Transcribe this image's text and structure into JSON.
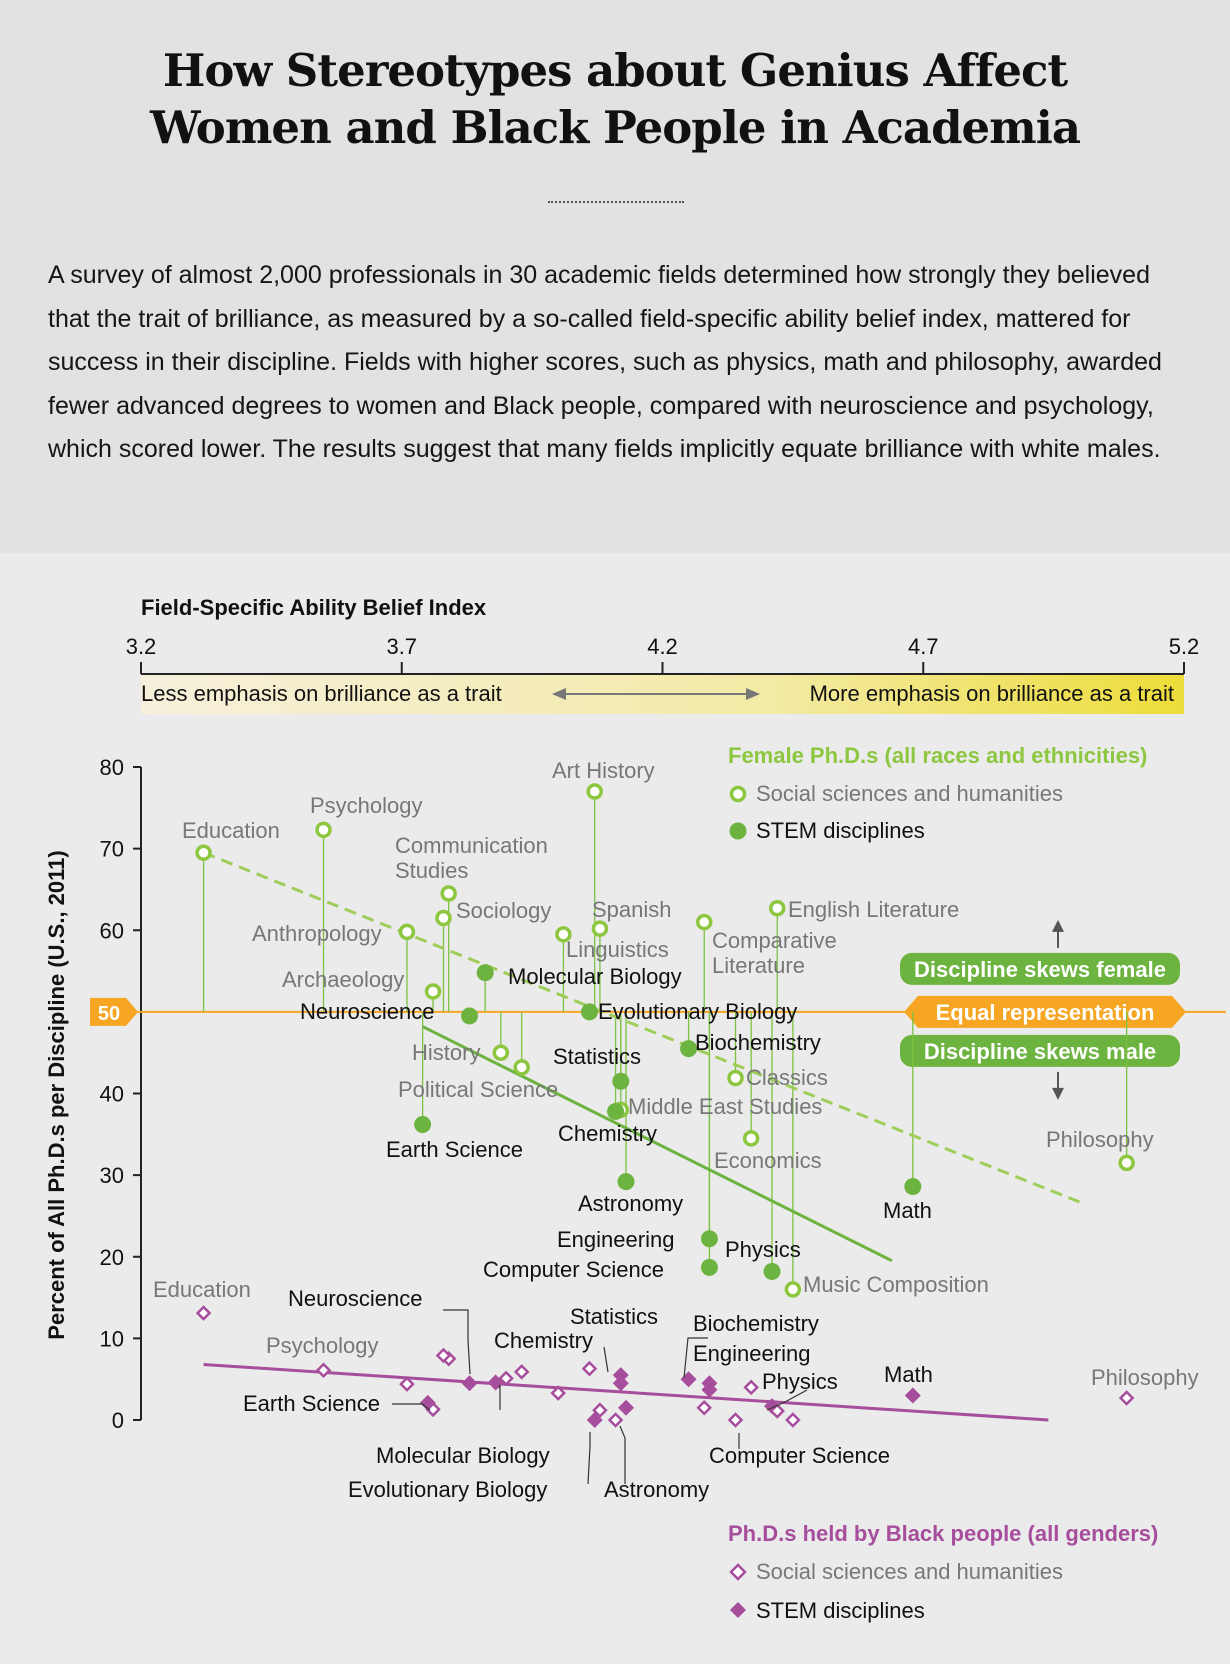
{
  "header": {
    "title_line1": "How Stereotypes about Genius Affect",
    "title_line2": "Women and Black People in Academia",
    "intro": "A survey of almost 2,000 professionals in 30 academic fields determined how strongly they believed that the trait of brilliance, as measured by a so-called field-specific ability belief index, mattered for success in their discipline. Fields with higher scores, such as physics, math and philosophy, awarded fewer advanced degrees to women and Black people, compared with neuroscience and psychology, which scored lower. The results suggest that many fields implicitly equate brilliance with white males."
  },
  "colors": {
    "female_green": "#7cc242",
    "female_dark": "#6cb33f",
    "black_purple": "#a64d9c",
    "orange": "#f6a623",
    "gradient_start": "#f6f0dc",
    "gradient_end": "#eddd3a"
  },
  "chart_data": {
    "type": "scatter",
    "xaxis": {
      "title": "Field-Specific Ability Belief Index",
      "ticks": [
        "3.2",
        "3.7",
        "4.2",
        "4.7",
        "5.2"
      ],
      "range": [
        3.2,
        5.2
      ],
      "left_label": "Less emphasis on brilliance as a trait",
      "right_label": "More emphasis on brilliance as a trait"
    },
    "yaxis": {
      "title": "Percent of All Ph.D.s per Discipline (U.S., 2011)",
      "ticks": [
        "0",
        "10",
        "20",
        "30",
        "40",
        "50",
        "60",
        "70",
        "80"
      ],
      "range": [
        0,
        80
      ]
    },
    "reference": {
      "value_label": "50",
      "equal_label": "Equal representation",
      "female_label": "Discipline skews female",
      "male_label": "Discipline skews male"
    },
    "legend_female": {
      "title": "Female Ph.D.s (all races and ethnicities)",
      "social": "Social sciences and humanities",
      "stem": "STEM disciplines"
    },
    "legend_black": {
      "title": "Ph.D.s held by Black people (all genders)",
      "social": "Social sciences and humanities",
      "stem": "STEM disciplines"
    },
    "female_series": [
      {
        "name": "Education",
        "x": 3.32,
        "y": 69.5,
        "group": "social"
      },
      {
        "name": "Psychology",
        "x": 3.55,
        "y": 72.3,
        "group": "social"
      },
      {
        "name": "Anthropology",
        "x": 3.71,
        "y": 59.8,
        "group": "social"
      },
      {
        "name": "Communication Studies",
        "x": 3.79,
        "y": 64.5,
        "group": "social"
      },
      {
        "name": "Sociology",
        "x": 3.78,
        "y": 61.5,
        "group": "social"
      },
      {
        "name": "Archaeology",
        "x": 3.76,
        "y": 52.5,
        "group": "social"
      },
      {
        "name": "Neuroscience",
        "x": 3.83,
        "y": 49.5,
        "group": "stem"
      },
      {
        "name": "Molecular Biology",
        "x": 3.86,
        "y": 54.8,
        "group": "stem"
      },
      {
        "name": "History",
        "x": 3.89,
        "y": 45.0,
        "group": "social"
      },
      {
        "name": "Political Science",
        "x": 3.93,
        "y": 43.2,
        "group": "social"
      },
      {
        "name": "Earth Science",
        "x": 3.74,
        "y": 36.2,
        "group": "stem"
      },
      {
        "name": "Linguistics",
        "x": 4.01,
        "y": 59.5,
        "group": "social"
      },
      {
        "name": "Spanish",
        "x": 4.08,
        "y": 60.2,
        "group": "social"
      },
      {
        "name": "Art History",
        "x": 4.07,
        "y": 77.0,
        "group": "social"
      },
      {
        "name": "Evolutionary Biology",
        "x": 4.06,
        "y": 50.0,
        "group": "stem"
      },
      {
        "name": "Statistics",
        "x": 4.12,
        "y": 41.5,
        "group": "stem"
      },
      {
        "name": "Middle East Studies",
        "x": 4.12,
        "y": 38.0,
        "group": "social"
      },
      {
        "name": "Chemistry",
        "x": 4.11,
        "y": 37.8,
        "group": "stem"
      },
      {
        "name": "Astronomy",
        "x": 4.13,
        "y": 29.2,
        "group": "stem"
      },
      {
        "name": "Biochemistry",
        "x": 4.25,
        "y": 45.5,
        "group": "stem"
      },
      {
        "name": "Comparative Literature",
        "x": 4.28,
        "y": 61.0,
        "group": "social"
      },
      {
        "name": "English Literature",
        "x": 4.42,
        "y": 62.7,
        "group": "social"
      },
      {
        "name": "Classics",
        "x": 4.34,
        "y": 41.9,
        "group": "social"
      },
      {
        "name": "Economics",
        "x": 4.37,
        "y": 34.5,
        "group": "social"
      },
      {
        "name": "Engineering",
        "x": 4.29,
        "y": 22.2,
        "group": "stem"
      },
      {
        "name": "Computer Science",
        "x": 4.29,
        "y": 18.7,
        "group": "stem"
      },
      {
        "name": "Physics",
        "x": 4.41,
        "y": 18.2,
        "group": "stem"
      },
      {
        "name": "Music Composition",
        "x": 4.45,
        "y": 16.0,
        "group": "social"
      },
      {
        "name": "Math",
        "x": 4.68,
        "y": 28.6,
        "group": "stem"
      },
      {
        "name": "Philosophy",
        "x": 5.09,
        "y": 31.5,
        "group": "social"
      }
    ],
    "black_series": [
      {
        "name": "Education",
        "x": 3.32,
        "y": 13.1,
        "group": "social"
      },
      {
        "name": "Psychology",
        "x": 3.55,
        "y": 6.1,
        "group": "social"
      },
      {
        "name": "Anthropology",
        "x": 3.71,
        "y": 4.4,
        "group": "social"
      },
      {
        "name": "Communication Studies",
        "x": 3.79,
        "y": 7.5,
        "group": "social"
      },
      {
        "name": "Sociology",
        "x": 3.78,
        "y": 7.9,
        "group": "social"
      },
      {
        "name": "Archaeology",
        "x": 3.76,
        "y": 1.3,
        "group": "social"
      },
      {
        "name": "Neuroscience",
        "x": 3.83,
        "y": 4.5,
        "group": "stem"
      },
      {
        "name": "Molecular Biology",
        "x": 3.88,
        "y": 4.6,
        "group": "stem"
      },
      {
        "name": "Earth Science",
        "x": 3.75,
        "y": 2.1,
        "group": "stem"
      },
      {
        "name": "History",
        "x": 3.93,
        "y": 5.9,
        "group": "social"
      },
      {
        "name": "Political Science",
        "x": 3.9,
        "y": 5.1,
        "group": "social"
      },
      {
        "name": "Linguistics",
        "x": 4.0,
        "y": 3.3,
        "group": "social"
      },
      {
        "name": "Spanish",
        "x": 4.06,
        "y": 6.3,
        "group": "social"
      },
      {
        "name": "Art History",
        "x": 4.08,
        "y": 1.2,
        "group": "social"
      },
      {
        "name": "Evolutionary Biology",
        "x": 4.07,
        "y": 0.0,
        "group": "stem"
      },
      {
        "name": "Statistics",
        "x": 4.12,
        "y": 4.5,
        "group": "stem"
      },
      {
        "name": "Middle East Studies",
        "x": 4.11,
        "y": 0.0,
        "group": "social"
      },
      {
        "name": "Chemistry",
        "x": 4.12,
        "y": 5.5,
        "group": "stem"
      },
      {
        "name": "Astronomy",
        "x": 4.13,
        "y": 1.5,
        "group": "stem"
      },
      {
        "name": "Biochemistry",
        "x": 4.25,
        "y": 5.0,
        "group": "stem"
      },
      {
        "name": "Comparative Literature",
        "x": 4.28,
        "y": 1.5,
        "group": "social"
      },
      {
        "name": "Engineering",
        "x": 4.29,
        "y": 3.7,
        "group": "stem"
      },
      {
        "name": "Computer Science",
        "x": 4.29,
        "y": 4.5,
        "group": "stem"
      },
      {
        "name": "Classics",
        "x": 4.34,
        "y": 0.0,
        "group": "social"
      },
      {
        "name": "Economics",
        "x": 4.37,
        "y": 4.0,
        "group": "social"
      },
      {
        "name": "Physics",
        "x": 4.41,
        "y": 1.7,
        "group": "stem"
      },
      {
        "name": "English Literature",
        "x": 4.42,
        "y": 1.1,
        "group": "social"
      },
      {
        "name": "Music Composition",
        "x": 4.45,
        "y": 0.0,
        "group": "social"
      },
      {
        "name": "Math",
        "x": 4.68,
        "y": 3.0,
        "group": "stem"
      },
      {
        "name": "Philosophy",
        "x": 5.09,
        "y": 2.7,
        "group": "social"
      }
    ],
    "female_trend_all": {
      "x": [
        3.32,
        5.0
      ],
      "y": [
        69.5,
        26.7
      ]
    },
    "female_trend_stem": {
      "x": [
        3.74,
        4.64
      ],
      "y": [
        48.2,
        19.5
      ]
    },
    "black_trend": {
      "x": [
        3.32,
        4.94
      ],
      "y": [
        6.8,
        0.0
      ]
    },
    "female_labels": [
      {
        "text": "Education"
      },
      {
        "text": "Psychology"
      },
      {
        "text": "Anthropology"
      },
      {
        "text": "Communication"
      },
      {
        "text": "Studies"
      },
      {
        "text": "Sociology"
      },
      {
        "text": "Archaeology"
      },
      {
        "text": "Neuroscience"
      },
      {
        "text": "Molecular Biology"
      },
      {
        "text": "History"
      },
      {
        "text": "Political Science"
      },
      {
        "text": "Earth Science"
      },
      {
        "text": "Art History"
      },
      {
        "text": "Spanish"
      },
      {
        "text": "Linguistics"
      },
      {
        "text": "Evolutionary Biology"
      },
      {
        "text": "Statistics"
      },
      {
        "text": "Middle East Studies"
      },
      {
        "text": "Chemistry"
      },
      {
        "text": "Astronomy"
      },
      {
        "text": "Biochemistry"
      },
      {
        "text": "Comparative"
      },
      {
        "text": "Literature"
      },
      {
        "text": "English Literature"
      },
      {
        "text": "Classics"
      },
      {
        "text": "Economics"
      },
      {
        "text": "Engineering"
      },
      {
        "text": "Computer Science"
      },
      {
        "text": "Physics"
      },
      {
        "text": "Music Composition"
      },
      {
        "text": "Math"
      },
      {
        "text": "Philosophy"
      }
    ],
    "black_labels": [
      {
        "text": "Education"
      },
      {
        "text": "Psychology"
      },
      {
        "text": "Neuroscience"
      },
      {
        "text": "Earth Science"
      },
      {
        "text": "Chemistry"
      },
      {
        "text": "Statistics"
      },
      {
        "text": "Biochemistry"
      },
      {
        "text": "Engineering"
      },
      {
        "text": "Physics"
      },
      {
        "text": "Math"
      },
      {
        "text": "Philosophy"
      },
      {
        "text": "Molecular Biology"
      },
      {
        "text": "Evolutionary Biology"
      },
      {
        "text": "Astronomy"
      },
      {
        "text": "Computer Science"
      }
    ]
  }
}
